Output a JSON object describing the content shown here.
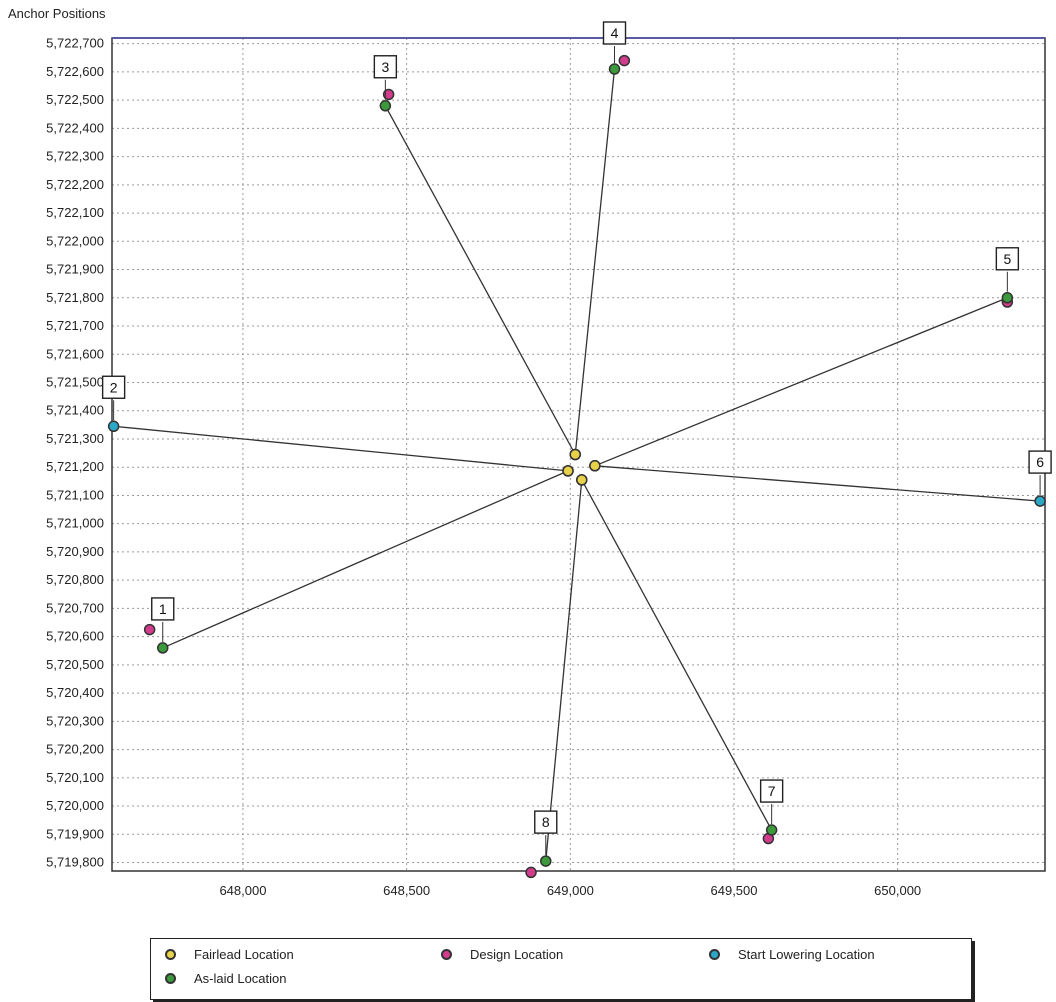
{
  "chart_data": {
    "type": "scatter",
    "title": "Anchor Positions",
    "xlabel": "",
    "ylabel": "",
    "xlim": [
      647600,
      650450
    ],
    "ylim": [
      5719770,
      5722720
    ],
    "x_ticks": [
      648000,
      648500,
      649000,
      649500,
      650000
    ],
    "x_tick_labels": [
      "648,000",
      "648,500",
      "649,000",
      "649,500",
      "650,000"
    ],
    "y_ticks": [
      5719800,
      5719900,
      5720000,
      5720100,
      5720200,
      5720300,
      5720400,
      5720500,
      5720600,
      5720700,
      5720800,
      5720900,
      5721000,
      5721100,
      5721200,
      5721300,
      5721400,
      5721500,
      5721600,
      5721700,
      5721800,
      5721900,
      5722000,
      5722100,
      5722200,
      5722300,
      5722400,
      5722500,
      5722600,
      5722700
    ],
    "y_tick_labels": [
      "5,719,800",
      "5,719,900",
      "5,720,000",
      "5,720,100",
      "5,720,200",
      "5,720,300",
      "5,720,400",
      "5,720,500",
      "5,720,600",
      "5,720,700",
      "5,720,800",
      "5,720,900",
      "5,721,000",
      "5,721,100",
      "5,721,200",
      "5,721,300",
      "5,721,400",
      "5,721,500",
      "5,721,600",
      "5,721,700",
      "5,721,800",
      "5,721,900",
      "5,722,000",
      "5,722,100",
      "5,722,200",
      "5,722,300",
      "5,722,400",
      "5,722,500",
      "5,722,600",
      "5,722,700"
    ],
    "grid": true,
    "legend_position": "bottom",
    "series": [
      {
        "name": "Fairlead Location",
        "color": "#e8d24a"
      },
      {
        "name": "Design Location",
        "color": "#d23c8c"
      },
      {
        "name": "Start Lowering Location",
        "color": "#2aa8c8"
      },
      {
        "name": "As-laid Location",
        "color": "#3c9a3c"
      }
    ],
    "anchors": [
      {
        "label": "1",
        "fairlead": [
          648993,
          5721187
        ],
        "design": [
          647715,
          5720625
        ],
        "start_lowering": null,
        "as_laid": [
          647755,
          5720560
        ]
      },
      {
        "label": "2",
        "fairlead": [
          648993,
          5721187
        ],
        "design": null,
        "start_lowering": [
          647605,
          5721345
        ],
        "as_laid": null
      },
      {
        "label": "3",
        "fairlead": [
          649015,
          5721245
        ],
        "design": [
          648445,
          5722520
        ],
        "start_lowering": null,
        "as_laid": [
          648435,
          5722480
        ]
      },
      {
        "label": "4",
        "fairlead": [
          649015,
          5721245
        ],
        "design": [
          649165,
          5722640
        ],
        "start_lowering": null,
        "as_laid": [
          649135,
          5722610
        ]
      },
      {
        "label": "5",
        "fairlead": [
          649075,
          5721205
        ],
        "design": [
          650335,
          5721785
        ],
        "start_lowering": null,
        "as_laid": [
          650335,
          5721800
        ]
      },
      {
        "label": "6",
        "fairlead": [
          649075,
          5721205
        ],
        "design": null,
        "start_lowering": [
          650435,
          5721080
        ],
        "as_laid": null
      },
      {
        "label": "7",
        "fairlead": [
          649035,
          5721155
        ],
        "design": [
          649605,
          5719885
        ],
        "start_lowering": null,
        "as_laid": [
          649615,
          5719915
        ]
      },
      {
        "label": "8",
        "fairlead": [
          649035,
          5721155
        ],
        "design": [
          648880,
          5719765
        ],
        "start_lowering": null,
        "as_laid": [
          648925,
          5719805
        ]
      }
    ]
  }
}
